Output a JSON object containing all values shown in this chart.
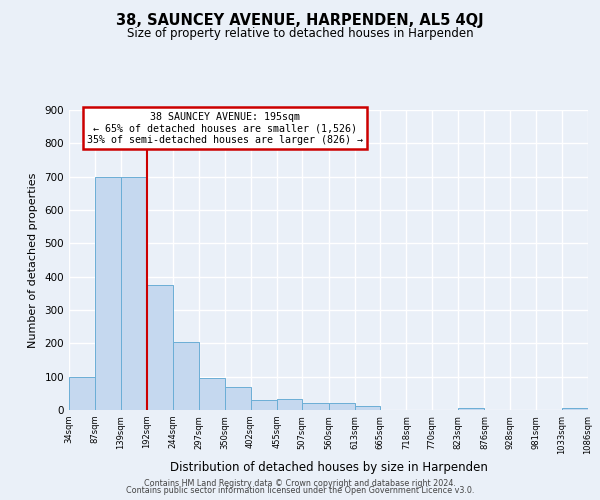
{
  "title": "38, SAUNCEY AVENUE, HARPENDEN, AL5 4QJ",
  "subtitle": "Size of property relative to detached houses in Harpenden",
  "xlabel": "Distribution of detached houses by size in Harpenden",
  "ylabel": "Number of detached properties",
  "bar_edges": [
    34,
    87,
    139,
    192,
    244,
    297,
    350,
    402,
    455,
    507,
    560,
    613,
    665,
    718,
    770,
    823,
    876,
    928,
    981,
    1033,
    1086
  ],
  "bar_heights": [
    100,
    700,
    700,
    375,
    205,
    95,
    70,
    30,
    32,
    20,
    20,
    13,
    0,
    0,
    0,
    7,
    0,
    0,
    0,
    7
  ],
  "bar_color": "#c5d8ef",
  "bar_edge_color": "#6baed6",
  "property_line_x": 192,
  "property_line_color": "#cc0000",
  "annotation_box_text": "38 SAUNCEY AVENUE: 195sqm\n← 65% of detached houses are smaller (1,526)\n35% of semi-detached houses are larger (826) →",
  "annotation_box_color": "#cc0000",
  "ylim": [
    0,
    900
  ],
  "background_color": "#eaf0f8",
  "plot_background": "#eaf0f8",
  "tick_labels": [
    "34sqm",
    "87sqm",
    "139sqm",
    "192sqm",
    "244sqm",
    "297sqm",
    "350sqm",
    "402sqm",
    "455sqm",
    "507sqm",
    "560sqm",
    "613sqm",
    "665sqm",
    "718sqm",
    "770sqm",
    "823sqm",
    "876sqm",
    "928sqm",
    "981sqm",
    "1033sqm",
    "1086sqm"
  ],
  "footer_line1": "Contains HM Land Registry data © Crown copyright and database right 2024.",
  "footer_line2": "Contains public sector information licensed under the Open Government Licence v3.0."
}
